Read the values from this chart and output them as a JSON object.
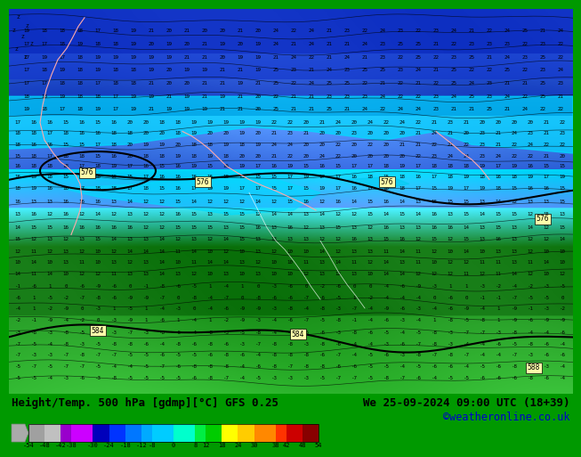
{
  "title_left": "Height/Temp. 500 hPa [gdmp][°C] GFS 0.25",
  "title_right": "We 25-09-2024 09:00 UTC (18+39)",
  "credit": "©weatheronline.co.uk",
  "colorbar_labels": [
    "-54",
    "-48",
    "-42",
    "-38",
    "-30",
    "-24",
    "-18",
    "-12",
    "-8",
    "0",
    "8",
    "12",
    "18",
    "24",
    "30",
    "38",
    "42",
    "48",
    "54"
  ],
  "colorbar_values": [
    -54,
    -48,
    -42,
    -38,
    -30,
    -24,
    -18,
    -12,
    -8,
    0,
    8,
    12,
    18,
    24,
    30,
    38,
    42,
    48,
    54
  ],
  "colorbar_colors": [
    "#a0a0a0",
    "#c0c0c0",
    "#9900cc",
    "#cc00ff",
    "#0000bb",
    "#0033ff",
    "#0077ff",
    "#00aaff",
    "#00ccff",
    "#00ffcc",
    "#00ee44",
    "#00cc00",
    "#ffff00",
    "#ffcc00",
    "#ff8800",
    "#ff3300",
    "#cc0000",
    "#880000"
  ],
  "label_color": "#000000",
  "credit_color": "#0000cc",
  "title_fontsize": 9.0,
  "credit_fontsize": 8.5,
  "colorbar_arrow_color": "#888888",
  "land_dark": "#1a7a1a",
  "land_medium": "#2a9a2a",
  "sea_cyan": "#00ddff",
  "sea_lightblue": "#88aaff",
  "sky_blue": "#2244dd",
  "sky_darkblue": "#1122aa"
}
